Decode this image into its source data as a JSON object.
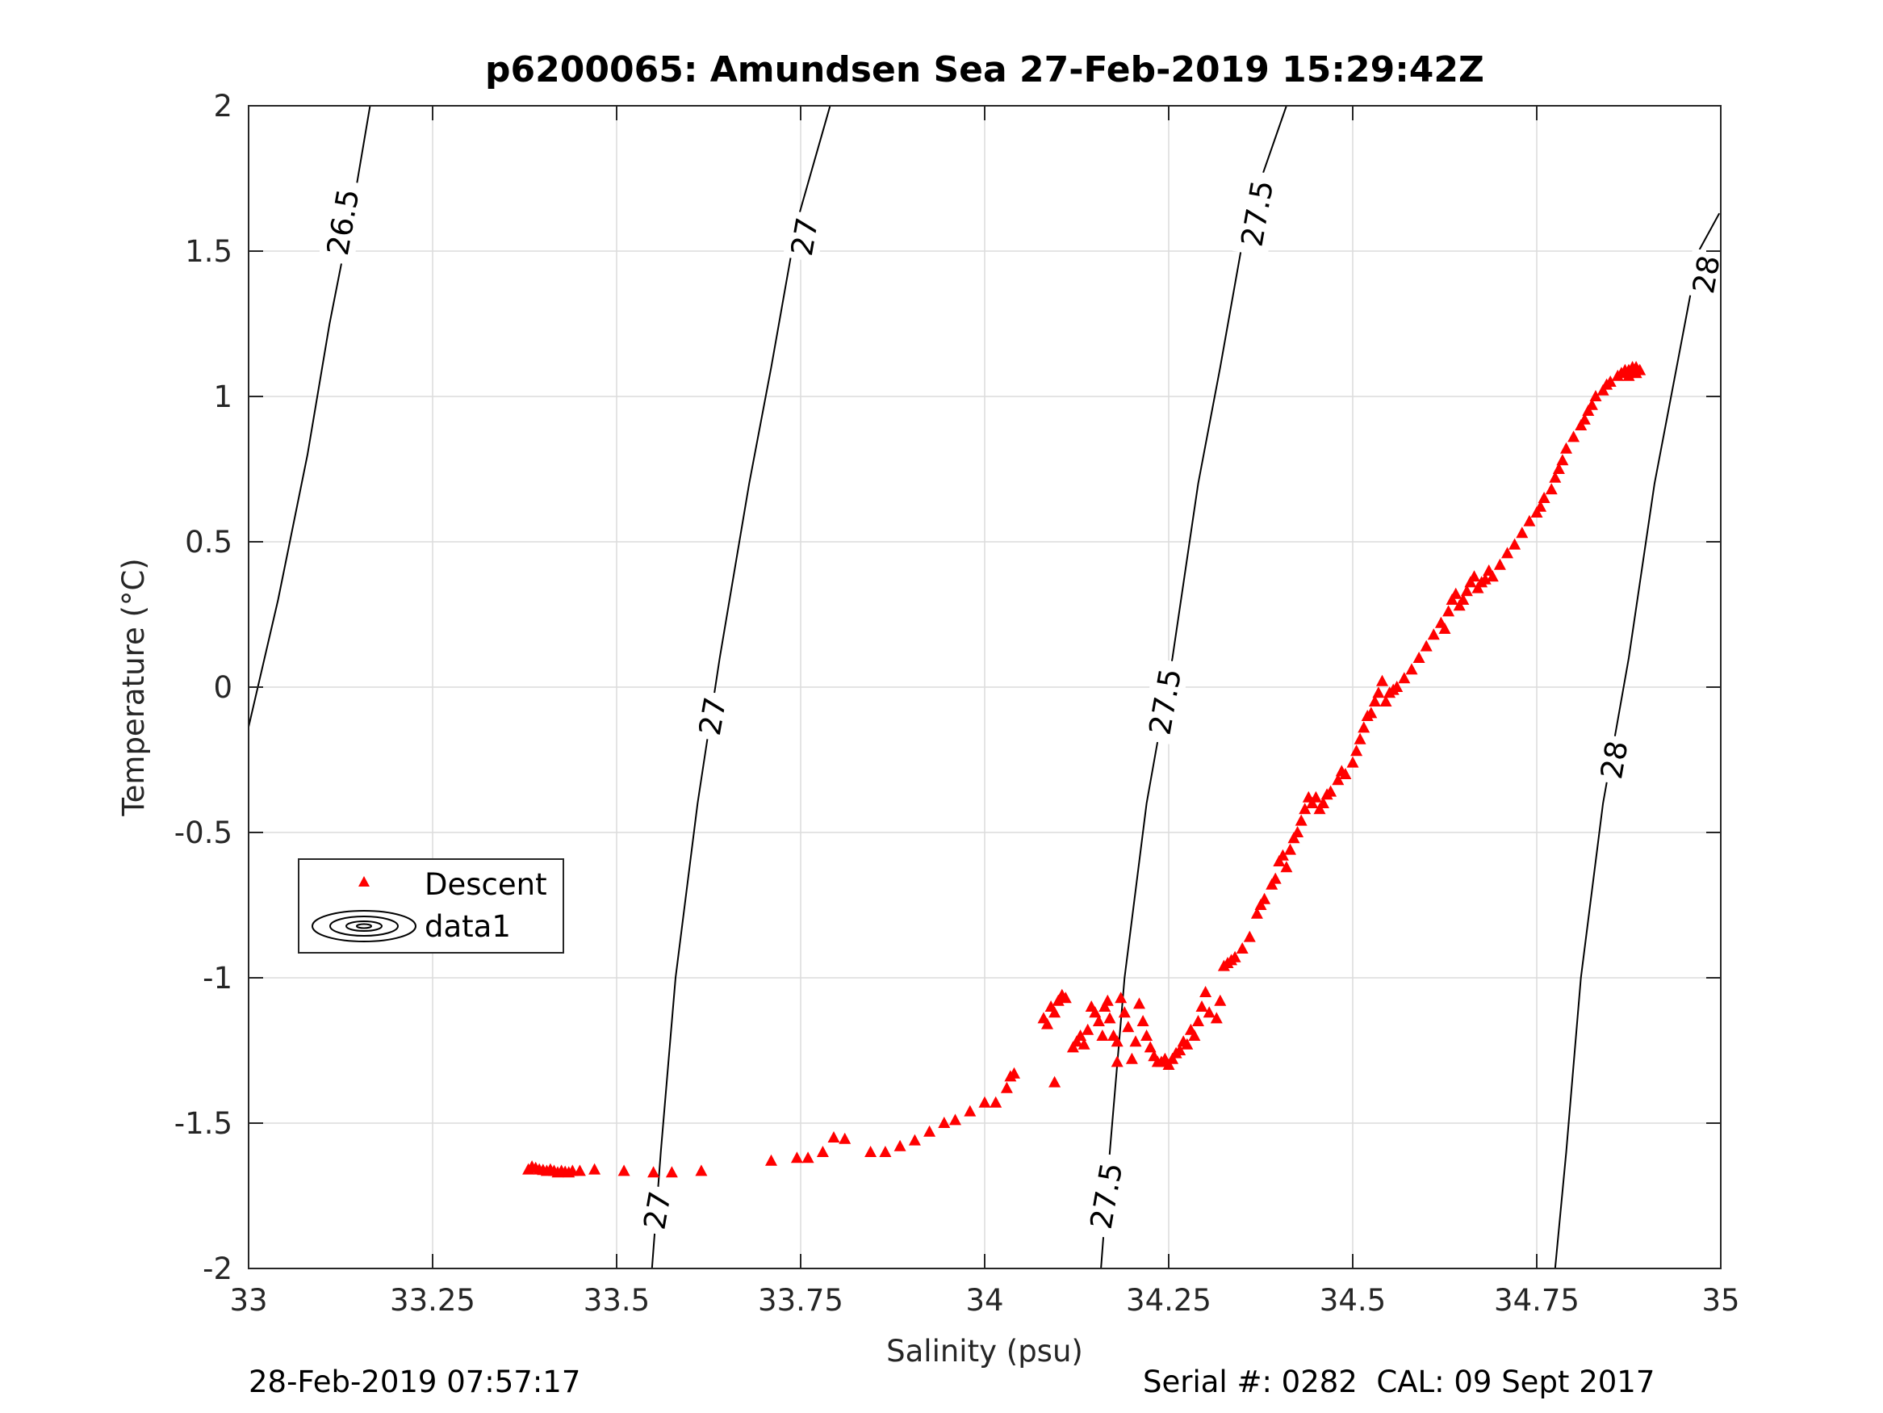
{
  "chart_data": {
    "type": "scatter",
    "title": "p6200065: Amundsen Sea 27-Feb-2019 15:29:42Z",
    "xlabel": "Salinity (psu)",
    "ylabel": "Temperature (°C)",
    "xlim": [
      33,
      35
    ],
    "ylim": [
      -2,
      2
    ],
    "xticks": [
      33,
      33.25,
      33.5,
      33.75,
      34,
      34.25,
      34.5,
      34.75,
      35
    ],
    "xtick_labels": [
      "33",
      "33.25",
      "33.5",
      "33.75",
      "34",
      "34.25",
      "34.5",
      "34.75",
      "35"
    ],
    "yticks": [
      -2,
      -1.5,
      -1,
      -0.5,
      0,
      0.5,
      1,
      1.5,
      2
    ],
    "ytick_labels": [
      "-2",
      "-1.5",
      "-1",
      "-0.5",
      "0",
      "0.5",
      "1",
      "1.5",
      "2"
    ],
    "grid": true,
    "legend_position": "middle-left",
    "legend": [
      {
        "label": "Descent",
        "marker": "triangle",
        "color": "#ff0000"
      },
      {
        "label": "data1",
        "marker": "contour",
        "color": "#000000"
      }
    ],
    "marker_color": "#ff0000",
    "contour_color": "#000000",
    "isopycnals": [
      {
        "label": "26.5",
        "points": [
          [
            32.996,
            -0.18
          ],
          [
            33.04,
            0.3
          ],
          [
            33.08,
            0.8
          ],
          [
            33.11,
            1.25
          ],
          [
            33.145,
            1.7
          ],
          [
            33.165,
            2.0
          ]
        ],
        "labels_at": [
          [
            33.128,
            1.6
          ]
        ]
      },
      {
        "label": "27",
        "points": [
          [
            33.548,
            -2.0
          ],
          [
            33.56,
            -1.6
          ],
          [
            33.58,
            -1.0
          ],
          [
            33.61,
            -0.4
          ],
          [
            33.64,
            0.1
          ],
          [
            33.68,
            0.7
          ],
          [
            33.71,
            1.1
          ],
          [
            33.745,
            1.6
          ],
          [
            33.79,
            2.0
          ]
        ],
        "labels_at": [
          [
            33.555,
            -1.8
          ],
          [
            33.63,
            -0.1
          ],
          [
            33.755,
            1.55
          ]
        ]
      },
      {
        "label": "27.5",
        "points": [
          [
            34.158,
            -2.0
          ],
          [
            34.17,
            -1.6
          ],
          [
            34.19,
            -1.0
          ],
          [
            34.22,
            -0.4
          ],
          [
            34.255,
            0.1
          ],
          [
            34.29,
            0.7
          ],
          [
            34.32,
            1.1
          ],
          [
            34.355,
            1.6
          ],
          [
            34.41,
            2.0
          ]
        ],
        "labels_at": [
          [
            34.165,
            -1.75
          ],
          [
            34.245,
            -0.05
          ],
          [
            34.37,
            1.63
          ]
        ]
      },
      {
        "label": "28",
        "points": [
          [
            34.775,
            -2.0
          ],
          [
            34.79,
            -1.6
          ],
          [
            34.81,
            -1.0
          ],
          [
            34.84,
            -0.4
          ],
          [
            34.875,
            0.1
          ],
          [
            34.91,
            0.7
          ],
          [
            34.94,
            1.1
          ],
          [
            34.97,
            1.5
          ],
          [
            34.998,
            1.63
          ]
        ],
        "labels_at": [
          [
            34.855,
            -0.25
          ],
          [
            34.98,
            1.42
          ]
        ]
      }
    ],
    "series": [
      {
        "name": "Descent",
        "points": [
          [
            33.38,
            -1.66
          ],
          [
            33.385,
            -1.65
          ],
          [
            33.39,
            -1.655
          ],
          [
            33.395,
            -1.66
          ],
          [
            33.4,
            -1.662
          ],
          [
            33.405,
            -1.665
          ],
          [
            33.41,
            -1.66
          ],
          [
            33.415,
            -1.665
          ],
          [
            33.42,
            -1.67
          ],
          [
            33.425,
            -1.665
          ],
          [
            33.43,
            -1.668
          ],
          [
            33.435,
            -1.67
          ],
          [
            33.44,
            -1.665
          ],
          [
            33.45,
            -1.665
          ],
          [
            33.47,
            -1.66
          ],
          [
            33.51,
            -1.665
          ],
          [
            33.55,
            -1.67
          ],
          [
            33.575,
            -1.67
          ],
          [
            33.615,
            -1.665
          ],
          [
            33.71,
            -1.63
          ],
          [
            33.745,
            -1.62
          ],
          [
            33.76,
            -1.62
          ],
          [
            33.78,
            -1.6
          ],
          [
            33.795,
            -1.55
          ],
          [
            33.81,
            -1.555
          ],
          [
            33.845,
            -1.6
          ],
          [
            33.865,
            -1.6
          ],
          [
            33.885,
            -1.58
          ],
          [
            33.905,
            -1.56
          ],
          [
            33.925,
            -1.53
          ],
          [
            33.945,
            -1.5
          ],
          [
            33.96,
            -1.49
          ],
          [
            33.98,
            -1.46
          ],
          [
            34.0,
            -1.43
          ],
          [
            34.015,
            -1.43
          ],
          [
            34.03,
            -1.38
          ],
          [
            34.035,
            -1.34
          ],
          [
            34.04,
            -1.33
          ],
          [
            34.08,
            -1.14
          ],
          [
            34.085,
            -1.16
          ],
          [
            34.09,
            -1.1
          ],
          [
            34.095,
            -1.12
          ],
          [
            34.1,
            -1.08
          ],
          [
            34.105,
            -1.06
          ],
          [
            34.11,
            -1.07
          ],
          [
            34.095,
            -1.36
          ],
          [
            34.12,
            -1.24
          ],
          [
            34.125,
            -1.22
          ],
          [
            34.13,
            -1.2
          ],
          [
            34.135,
            -1.23
          ],
          [
            34.14,
            -1.18
          ],
          [
            34.145,
            -1.1
          ],
          [
            34.15,
            -1.12
          ],
          [
            34.155,
            -1.15
          ],
          [
            34.16,
            -1.2
          ],
          [
            34.163,
            -1.1
          ],
          [
            34.167,
            -1.08
          ],
          [
            34.17,
            -1.14
          ],
          [
            34.175,
            -1.2
          ],
          [
            34.18,
            -1.22
          ],
          [
            34.18,
            -1.29
          ],
          [
            34.185,
            -1.07
          ],
          [
            34.19,
            -1.12
          ],
          [
            34.195,
            -1.17
          ],
          [
            34.2,
            -1.28
          ],
          [
            34.205,
            -1.22
          ],
          [
            34.21,
            -1.09
          ],
          [
            34.215,
            -1.15
          ],
          [
            34.22,
            -1.2
          ],
          [
            34.225,
            -1.24
          ],
          [
            34.23,
            -1.27
          ],
          [
            34.235,
            -1.29
          ],
          [
            34.24,
            -1.29
          ],
          [
            34.245,
            -1.28
          ],
          [
            34.25,
            -1.3
          ],
          [
            34.255,
            -1.28
          ],
          [
            34.26,
            -1.26
          ],
          [
            34.265,
            -1.25
          ],
          [
            34.27,
            -1.22
          ],
          [
            34.275,
            -1.23
          ],
          [
            34.28,
            -1.18
          ],
          [
            34.285,
            -1.2
          ],
          [
            34.29,
            -1.15
          ],
          [
            34.295,
            -1.1
          ],
          [
            34.3,
            -1.05
          ],
          [
            34.305,
            -1.12
          ],
          [
            34.315,
            -1.14
          ],
          [
            34.32,
            -1.08
          ],
          [
            34.325,
            -0.96
          ],
          [
            34.33,
            -0.95
          ],
          [
            34.335,
            -0.94
          ],
          [
            34.34,
            -0.93
          ],
          [
            34.35,
            -0.9
          ],
          [
            34.36,
            -0.86
          ],
          [
            34.37,
            -0.78
          ],
          [
            34.375,
            -0.75
          ],
          [
            34.38,
            -0.73
          ],
          [
            34.39,
            -0.68
          ],
          [
            34.395,
            -0.66
          ],
          [
            34.4,
            -0.6
          ],
          [
            34.405,
            -0.58
          ],
          [
            34.41,
            -0.62
          ],
          [
            34.415,
            -0.56
          ],
          [
            34.42,
            -0.52
          ],
          [
            34.425,
            -0.5
          ],
          [
            34.43,
            -0.46
          ],
          [
            34.435,
            -0.42
          ],
          [
            34.44,
            -0.38
          ],
          [
            34.445,
            -0.4
          ],
          [
            34.45,
            -0.38
          ],
          [
            34.455,
            -0.42
          ],
          [
            34.46,
            -0.4
          ],
          [
            34.465,
            -0.37
          ],
          [
            34.47,
            -0.36
          ],
          [
            34.48,
            -0.32
          ],
          [
            34.485,
            -0.29
          ],
          [
            34.49,
            -0.3
          ],
          [
            34.5,
            -0.26
          ],
          [
            34.505,
            -0.22
          ],
          [
            34.51,
            -0.18
          ],
          [
            34.515,
            -0.14
          ],
          [
            34.52,
            -0.1
          ],
          [
            34.525,
            -0.09
          ],
          [
            34.53,
            -0.05
          ],
          [
            34.535,
            -0.02
          ],
          [
            34.54,
            0.02
          ],
          [
            34.545,
            -0.05
          ],
          [
            34.55,
            -0.02
          ],
          [
            34.555,
            -0.01
          ],
          [
            34.56,
            0.0
          ],
          [
            34.57,
            0.03
          ],
          [
            34.58,
            0.06
          ],
          [
            34.59,
            0.1
          ],
          [
            34.6,
            0.14
          ],
          [
            34.61,
            0.18
          ],
          [
            34.62,
            0.22
          ],
          [
            34.625,
            0.2
          ],
          [
            34.63,
            0.26
          ],
          [
            34.635,
            0.3
          ],
          [
            34.64,
            0.32
          ],
          [
            34.645,
            0.28
          ],
          [
            34.65,
            0.3
          ],
          [
            34.655,
            0.33
          ],
          [
            34.66,
            0.36
          ],
          [
            34.665,
            0.38
          ],
          [
            34.67,
            0.34
          ],
          [
            34.675,
            0.36
          ],
          [
            34.68,
            0.37
          ],
          [
            34.685,
            0.4
          ],
          [
            34.69,
            0.38
          ],
          [
            34.7,
            0.42
          ],
          [
            34.71,
            0.46
          ],
          [
            34.72,
            0.49
          ],
          [
            34.73,
            0.53
          ],
          [
            34.74,
            0.57
          ],
          [
            34.75,
            0.6
          ],
          [
            34.755,
            0.62
          ],
          [
            34.76,
            0.65
          ],
          [
            34.77,
            0.68
          ],
          [
            34.775,
            0.72
          ],
          [
            34.78,
            0.75
          ],
          [
            34.785,
            0.78
          ],
          [
            34.79,
            0.82
          ],
          [
            34.8,
            0.86
          ],
          [
            34.81,
            0.9
          ],
          [
            34.815,
            0.92
          ],
          [
            34.82,
            0.95
          ],
          [
            34.825,
            0.97
          ],
          [
            34.83,
            1.0
          ],
          [
            34.84,
            1.02
          ],
          [
            34.845,
            1.04
          ],
          [
            34.85,
            1.05
          ],
          [
            34.86,
            1.07
          ],
          [
            34.865,
            1.08
          ],
          [
            34.87,
            1.09
          ],
          [
            34.875,
            1.09
          ],
          [
            34.88,
            1.1
          ],
          [
            34.885,
            1.1
          ],
          [
            34.89,
            1.09
          ],
          [
            34.885,
            1.08
          ],
          [
            34.875,
            1.07
          ]
        ]
      }
    ]
  },
  "footer": {
    "left": "28-Feb-2019 07:57:17",
    "right": "Serial #: 0282  CAL: 09 Sept 2017"
  }
}
